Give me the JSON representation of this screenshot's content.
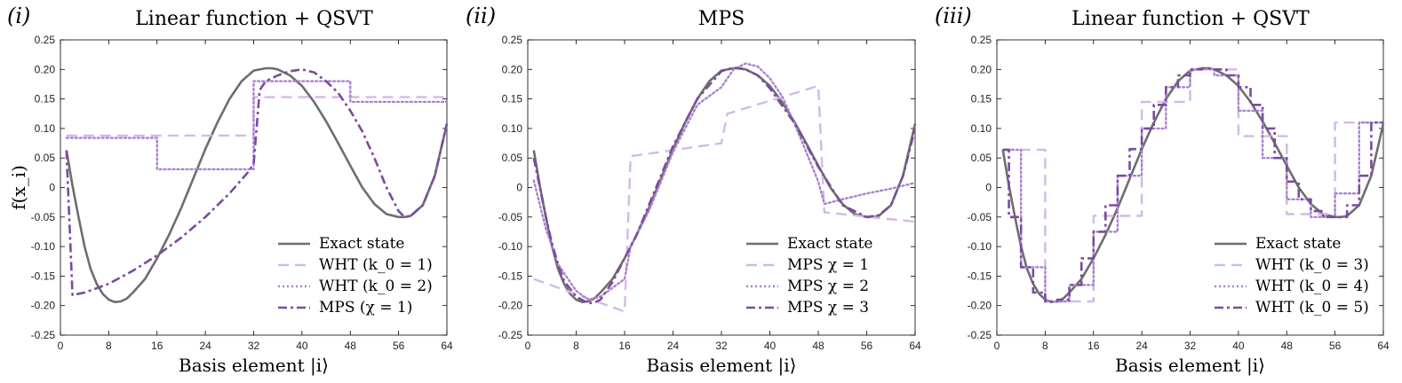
{
  "figure": {
    "ylabel": "f(x_i)",
    "colors": {
      "exact": "#6e6e6e",
      "light": "#d3b9e6",
      "medium": "#a983cf",
      "dark": "#7b4b9e",
      "axis": "#000000"
    }
  },
  "chart_data": [
    {
      "type": "line",
      "panel_label": "(i)",
      "title": "Linear function + QSVT",
      "xlabel": "Basis element |i⟩",
      "ylabel": "f(x_i)",
      "xlim": [
        0,
        64
      ],
      "ylim": [
        -0.25,
        0.25
      ],
      "xticks": [
        0,
        8,
        16,
        24,
        32,
        40,
        48,
        56,
        64
      ],
      "xtick_labels": [
        "0",
        "8",
        "16",
        "24",
        "32",
        "40",
        "48",
        "56",
        "64"
      ],
      "yticks": [
        -0.25,
        -0.2,
        -0.15,
        -0.1,
        -0.05,
        0,
        0.05,
        0.1,
        0.15,
        0.2,
        0.25
      ],
      "ytick_labels": [
        "-0.25",
        "-0.20",
        "-0.15",
        "-0.10",
        "-0.05",
        "0",
        "0.05",
        "0.10",
        "0.15",
        "0.20",
        "0.25"
      ],
      "legend_position": "bottom-right",
      "series": [
        {
          "name": "Exact state",
          "style": "solid",
          "color": "#6e6e6e",
          "x": [
            1,
            2,
            3,
            4,
            5,
            6,
            7,
            8,
            9,
            10,
            11,
            12,
            14,
            16,
            18,
            20,
            22,
            24,
            26,
            28,
            30,
            32,
            34,
            35,
            36,
            38,
            40,
            42,
            44,
            46,
            48,
            50,
            52,
            54,
            56,
            57,
            58,
            60,
            62,
            64
          ],
          "y": [
            0.063,
            0.003,
            -0.05,
            -0.1,
            -0.138,
            -0.163,
            -0.18,
            -0.19,
            -0.194,
            -0.193,
            -0.188,
            -0.178,
            -0.155,
            -0.12,
            -0.08,
            -0.035,
            0.015,
            0.065,
            0.11,
            0.15,
            0.18,
            0.198,
            0.202,
            0.202,
            0.2,
            0.19,
            0.172,
            0.145,
            0.112,
            0.075,
            0.037,
            0.0,
            -0.028,
            -0.045,
            -0.05,
            -0.05,
            -0.048,
            -0.03,
            0.02,
            0.108
          ]
        },
        {
          "name": "WHT (k_0 = 1)",
          "style": "dashed",
          "color": "#d3b9e6",
          "x": [
            1,
            32,
            32,
            64
          ],
          "y": [
            0.088,
            0.088,
            0.153,
            0.153
          ]
        },
        {
          "name": "WHT (k_0 = 2)",
          "style": "dotted",
          "color": "#a983cf",
          "x": [
            1,
            16,
            16,
            32,
            32,
            48,
            48,
            64
          ],
          "y": [
            0.084,
            0.084,
            0.031,
            0.031,
            0.18,
            0.18,
            0.145,
            0.145
          ]
        },
        {
          "name": "MPS (χ = 1)",
          "style": "dashdot",
          "color": "#7b4b9e",
          "x": [
            1,
            2,
            4,
            8,
            12,
            16,
            20,
            24,
            28,
            31,
            32,
            33,
            34,
            36,
            38,
            40,
            42,
            44,
            46,
            48,
            50,
            52,
            54,
            56,
            57,
            58,
            60,
            62,
            64
          ],
          "y": [
            0.063,
            -0.182,
            -0.178,
            -0.163,
            -0.141,
            -0.115,
            -0.085,
            -0.05,
            -0.01,
            0.025,
            0.04,
            0.165,
            0.18,
            0.19,
            0.197,
            0.2,
            0.195,
            0.18,
            0.16,
            0.13,
            0.095,
            0.05,
            0.0,
            -0.04,
            -0.05,
            -0.048,
            -0.03,
            0.02,
            0.108
          ]
        }
      ]
    },
    {
      "type": "line",
      "panel_label": "(ii)",
      "title": "MPS",
      "xlabel": "Basis element |i⟩",
      "ylabel": "",
      "xlim": [
        0,
        64
      ],
      "ylim": [
        -0.25,
        0.25
      ],
      "xticks": [
        0,
        8,
        16,
        24,
        32,
        40,
        48,
        56,
        64
      ],
      "xtick_labels": [
        "0",
        "8",
        "16",
        "24",
        "32",
        "40",
        "48",
        "56",
        "64"
      ],
      "yticks": [
        -0.25,
        -0.2,
        -0.15,
        -0.1,
        -0.05,
        0,
        0.05,
        0.1,
        0.15,
        0.2,
        0.25
      ],
      "ytick_labels": [
        "-0.25",
        "-0.20",
        "-0.15",
        "-0.10",
        "-0.05",
        "0",
        "0.05",
        "0.10",
        "0.15",
        "0.20",
        "0.25"
      ],
      "legend_position": "bottom-right",
      "series": [
        {
          "name": "Exact state",
          "style": "solid",
          "color": "#6e6e6e",
          "x": [
            1,
            2,
            3,
            4,
            5,
            6,
            7,
            8,
            9,
            10,
            11,
            12,
            14,
            16,
            18,
            20,
            22,
            24,
            26,
            28,
            30,
            32,
            34,
            35,
            36,
            38,
            40,
            42,
            44,
            46,
            48,
            50,
            52,
            54,
            56,
            57,
            58,
            60,
            62,
            64
          ],
          "y": [
            0.063,
            0.003,
            -0.05,
            -0.1,
            -0.138,
            -0.163,
            -0.18,
            -0.19,
            -0.194,
            -0.193,
            -0.188,
            -0.178,
            -0.155,
            -0.12,
            -0.08,
            -0.035,
            0.015,
            0.065,
            0.11,
            0.15,
            0.18,
            0.198,
            0.202,
            0.202,
            0.2,
            0.19,
            0.172,
            0.145,
            0.112,
            0.075,
            0.037,
            0.0,
            -0.028,
            -0.045,
            -0.05,
            -0.05,
            -0.048,
            -0.03,
            0.02,
            0.108
          ]
        },
        {
          "name": "MPS χ = 1",
          "style": "dashed",
          "color": "#d3b9e6",
          "x": [
            1,
            16,
            17,
            32,
            33,
            48,
            49,
            64
          ],
          "y": [
            -0.155,
            -0.21,
            0.053,
            0.075,
            0.125,
            0.172,
            -0.042,
            -0.058
          ]
        },
        {
          "name": "MPS χ = 2",
          "style": "dotted",
          "color": "#a983cf",
          "x": [
            1,
            3,
            5,
            8,
            10,
            12,
            14,
            16,
            17,
            20,
            24,
            28,
            32,
            34,
            36,
            38,
            40,
            42,
            44,
            46,
            48,
            49,
            52,
            56,
            60,
            64
          ],
          "y": [
            0.012,
            -0.07,
            -0.13,
            -0.175,
            -0.19,
            -0.185,
            -0.17,
            -0.155,
            -0.1,
            -0.04,
            0.06,
            0.14,
            0.17,
            0.2,
            0.21,
            0.205,
            0.185,
            0.155,
            0.11,
            0.06,
            0.01,
            -0.028,
            -0.02,
            -0.01,
            -0.002,
            0.008
          ]
        },
        {
          "name": "MPS χ = 3",
          "style": "dashdot",
          "color": "#7b4b9e",
          "x": [
            1,
            2,
            3,
            4,
            5,
            6,
            8,
            10,
            11,
            12,
            14,
            16,
            18,
            20,
            22,
            24,
            28,
            32,
            34,
            36,
            38,
            40,
            44,
            48,
            52,
            56,
            58,
            60,
            62,
            64
          ],
          "y": [
            0.05,
            0.0,
            -0.05,
            -0.095,
            -0.13,
            -0.158,
            -0.185,
            -0.196,
            -0.195,
            -0.19,
            -0.16,
            -0.12,
            -0.08,
            -0.03,
            0.02,
            0.07,
            0.15,
            0.197,
            0.203,
            0.2,
            0.19,
            0.168,
            0.11,
            0.035,
            -0.03,
            -0.05,
            -0.047,
            -0.03,
            0.02,
            0.1
          ]
        }
      ]
    },
    {
      "type": "line",
      "panel_label": "(iii)",
      "title": "Linear function + QSVT",
      "xlabel": "Basis element |i⟩",
      "ylabel": "",
      "xlim": [
        0,
        64
      ],
      "ylim": [
        -0.25,
        0.25
      ],
      "xticks": [
        0,
        8,
        16,
        24,
        32,
        40,
        48,
        56,
        64
      ],
      "xtick_labels": [
        "0",
        "8",
        "16",
        "24",
        "32",
        "40",
        "48",
        "56",
        "64"
      ],
      "yticks": [
        -0.25,
        -0.2,
        -0.15,
        -0.1,
        -0.05,
        0,
        0.05,
        0.1,
        0.15,
        0.2,
        0.25
      ],
      "ytick_labels": [
        "-0.25",
        "-0.20",
        "-0.15",
        "-0.10",
        "-0.05",
        "0",
        "0.05",
        "0.10",
        "0.15",
        "0.20",
        "0.25"
      ],
      "legend_position": "bottom-right",
      "series": [
        {
          "name": "Exact state",
          "style": "solid",
          "color": "#6e6e6e",
          "x": [
            1,
            2,
            3,
            4,
            5,
            6,
            7,
            8,
            9,
            10,
            11,
            12,
            14,
            16,
            18,
            20,
            22,
            24,
            26,
            28,
            30,
            32,
            34,
            35,
            36,
            38,
            40,
            42,
            44,
            46,
            48,
            50,
            52,
            54,
            56,
            57,
            58,
            60,
            62,
            64
          ],
          "y": [
            0.063,
            0.003,
            -0.05,
            -0.1,
            -0.138,
            -0.163,
            -0.18,
            -0.19,
            -0.194,
            -0.193,
            -0.188,
            -0.178,
            -0.155,
            -0.12,
            -0.08,
            -0.035,
            0.015,
            0.065,
            0.11,
            0.15,
            0.18,
            0.198,
            0.202,
            0.202,
            0.2,
            0.19,
            0.172,
            0.145,
            0.112,
            0.075,
            0.037,
            0.0,
            -0.028,
            -0.045,
            -0.05,
            -0.05,
            -0.048,
            -0.03,
            0.02,
            0.108
          ]
        },
        {
          "name": "WHT (k_0 = 3)",
          "style": "dashed",
          "color": "#d3b9e6",
          "x": [
            1,
            8,
            8,
            16,
            16,
            24,
            24,
            32,
            32,
            40,
            40,
            48,
            48,
            56,
            56,
            64
          ],
          "y": [
            0.064,
            0.064,
            -0.193,
            -0.193,
            -0.048,
            -0.048,
            0.145,
            0.145,
            0.2,
            0.2,
            0.087,
            0.087,
            -0.045,
            -0.045,
            0.11,
            0.11
          ]
        },
        {
          "name": "WHT (k_0 = 4)",
          "style": "dotted",
          "color": "#a983cf",
          "x": [
            1,
            4,
            4,
            8,
            8,
            12,
            12,
            16,
            16,
            20,
            20,
            24,
            24,
            28,
            28,
            32,
            32,
            36,
            36,
            40,
            40,
            44,
            44,
            48,
            48,
            52,
            52,
            56,
            56,
            60,
            60,
            64
          ],
          "y": [
            0.064,
            0.064,
            -0.135,
            -0.135,
            -0.193,
            -0.193,
            -0.165,
            -0.165,
            -0.075,
            -0.075,
            0.02,
            0.02,
            0.1,
            0.1,
            0.17,
            0.17,
            0.2,
            0.2,
            0.19,
            0.19,
            0.13,
            0.13,
            0.05,
            0.05,
            -0.02,
            -0.02,
            -0.05,
            -0.05,
            -0.01,
            -0.01,
            0.11,
            0.11
          ]
        },
        {
          "name": "WHT (k_0 = 5)",
          "style": "dashdot",
          "color": "#7b4b9e",
          "x": [
            1,
            2,
            2,
            4,
            4,
            6,
            6,
            8,
            8,
            10,
            10,
            12,
            12,
            14,
            14,
            16,
            16,
            18,
            18,
            20,
            20,
            22,
            22,
            24,
            24,
            26,
            26,
            28,
            28,
            30,
            30,
            32,
            32,
            34,
            34,
            36,
            36,
            38,
            38,
            40,
            40,
            42,
            42,
            44,
            44,
            46,
            46,
            48,
            48,
            50,
            50,
            52,
            52,
            54,
            54,
            56,
            56,
            58,
            58,
            60,
            60,
            62,
            62,
            64
          ],
          "y": [
            0.064,
            0.064,
            -0.05,
            -0.05,
            -0.135,
            -0.135,
            -0.178,
            -0.178,
            -0.193,
            -0.193,
            -0.19,
            -0.19,
            -0.165,
            -0.165,
            -0.12,
            -0.12,
            -0.075,
            -0.075,
            -0.03,
            -0.03,
            0.02,
            0.02,
            0.065,
            0.065,
            0.1,
            0.1,
            0.14,
            0.14,
            0.17,
            0.17,
            0.19,
            0.19,
            0.2,
            0.2,
            0.202,
            0.202,
            0.2,
            0.2,
            0.19,
            0.19,
            0.17,
            0.17,
            0.14,
            0.14,
            0.1,
            0.1,
            0.05,
            0.05,
            0.01,
            0.01,
            -0.02,
            -0.02,
            -0.04,
            -0.04,
            -0.05,
            -0.05,
            -0.05,
            -0.05,
            -0.03,
            -0.03,
            0.02,
            0.02,
            0.11,
            0.11
          ]
        }
      ]
    }
  ]
}
